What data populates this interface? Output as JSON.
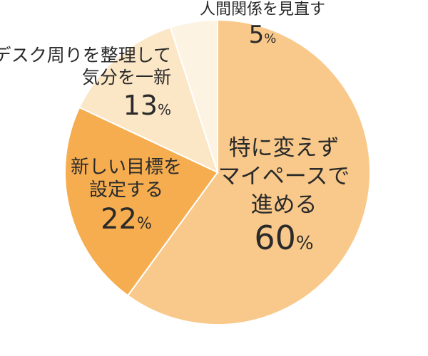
{
  "chart_data": {
    "type": "pie",
    "slices": [
      {
        "label_lines": [
          "特に変えず",
          "マイペースで",
          "進める"
        ],
        "value": 60,
        "color": "#f9c98b"
      },
      {
        "label_lines": [
          "新しい目標を",
          "設定する"
        ],
        "value": 22,
        "color": "#f5ad4f"
      },
      {
        "label_lines": [
          "デスク周りを整理して",
          "気分を一新"
        ],
        "value": 13,
        "color": "#fbe6c6"
      },
      {
        "label_lines": [
          "人間関係を見直す"
        ],
        "value": 5,
        "color": "#fdf3e3"
      }
    ],
    "percent_symbol": "%"
  }
}
